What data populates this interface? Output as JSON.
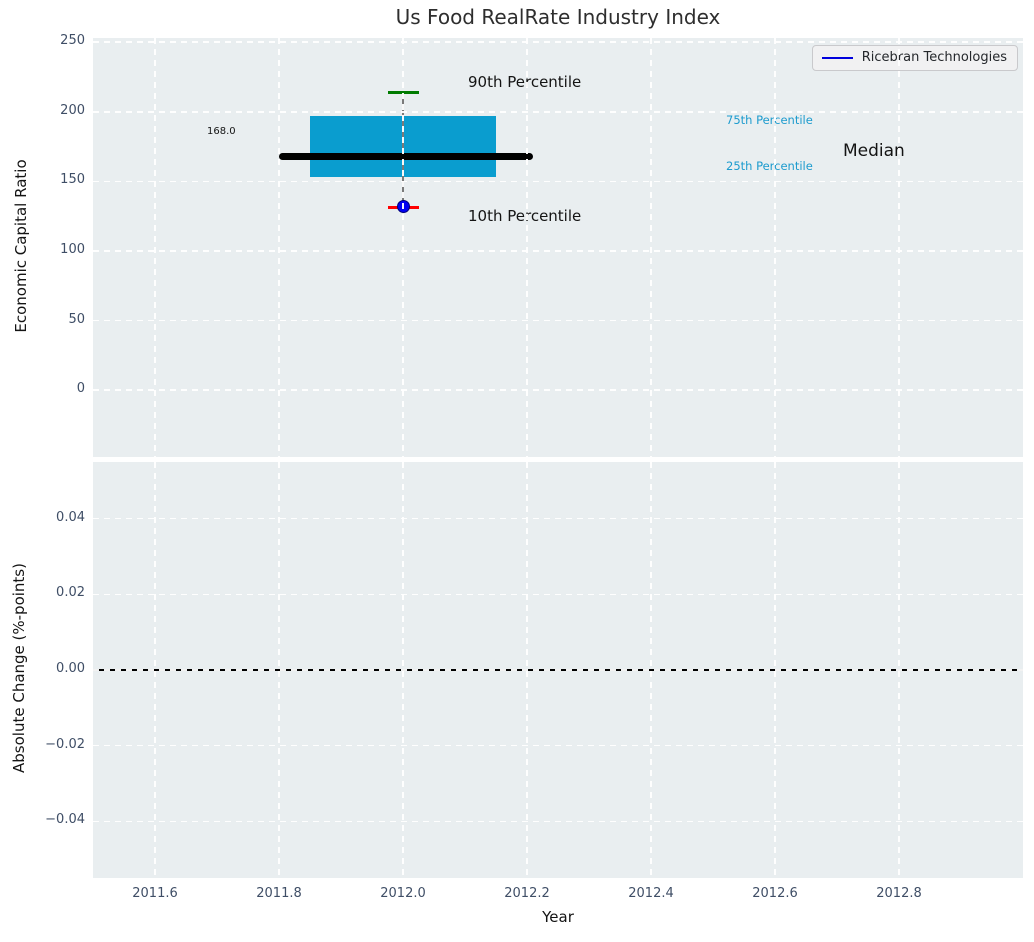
{
  "figure": {
    "title": "Us Food RealRate Industry Index"
  },
  "legend": {
    "label": "Ricebran Technologies"
  },
  "colors": {
    "box_fill": "#0a9dcf",
    "median_line": "#000000",
    "p90_cap": "#007b00",
    "p10_cap": "#ff0000",
    "company_marker": "#0000f2",
    "whisker": "#7a7a7a",
    "legend_line": "#0000dd",
    "percentile_label_text": "#1c9bce",
    "axes_background": "#e9eef0",
    "gridline": "#ffffff",
    "tick_label": "#3f4e66",
    "zero_line": "#000000"
  },
  "chart_data": [
    {
      "type": "box",
      "title": "Us Food RealRate Industry Index",
      "ylabel": "Economic Capital Ratio",
      "xlim": [
        2011.5,
        2013.0
      ],
      "ylim": [
        -48,
        253
      ],
      "ytick_values": [
        250,
        200,
        150,
        100,
        50,
        0
      ],
      "ytick_labels": [
        "250",
        "200",
        "150",
        "100",
        "50",
        "0"
      ],
      "grid": true,
      "legend_entries": [
        "Ricebran Technologies"
      ],
      "legend_position": "upper right",
      "box": {
        "x_center": 2012.0,
        "box_width_years": 0.3,
        "cap_width_years": 0.05,
        "median_line_x0": 2011.8,
        "median_line_x1": 2012.21,
        "p10": 131,
        "p25": 153,
        "median": 168.0,
        "p75": 197,
        "p90": 214
      },
      "company_point": {
        "name": "Ricebran Technologies",
        "x": 2012.0,
        "y": 132
      },
      "annotations": {
        "p90_label": "90th Percentile",
        "p10_label": "10th Percentile",
        "p75_label": "75th Percentile",
        "p25_label": "25th Percentile",
        "median_label": "Median",
        "median_value_label": "168.0"
      }
    },
    {
      "type": "line",
      "ylabel": "Absolute Change (%-points)",
      "xlabel": "Year",
      "xlim": [
        2011.5,
        2013.0
      ],
      "ylim": [
        -0.055,
        0.055
      ],
      "ytick_values": [
        0.04,
        0.02,
        0,
        -0.02,
        -0.04
      ],
      "ytick_labels": [
        "0.04",
        "0.02",
        "0.00",
        "−0.02",
        "−0.04"
      ],
      "xtick_values": [
        2011.6,
        2011.8,
        2012.0,
        2012.2,
        2012.4,
        2012.6,
        2012.8
      ],
      "xtick_labels": [
        "2011.6",
        "2011.8",
        "2012.0",
        "2012.2",
        "2012.4",
        "2012.6",
        "2012.8"
      ],
      "grid": true,
      "zero_line_y": 0.0,
      "series": []
    }
  ]
}
